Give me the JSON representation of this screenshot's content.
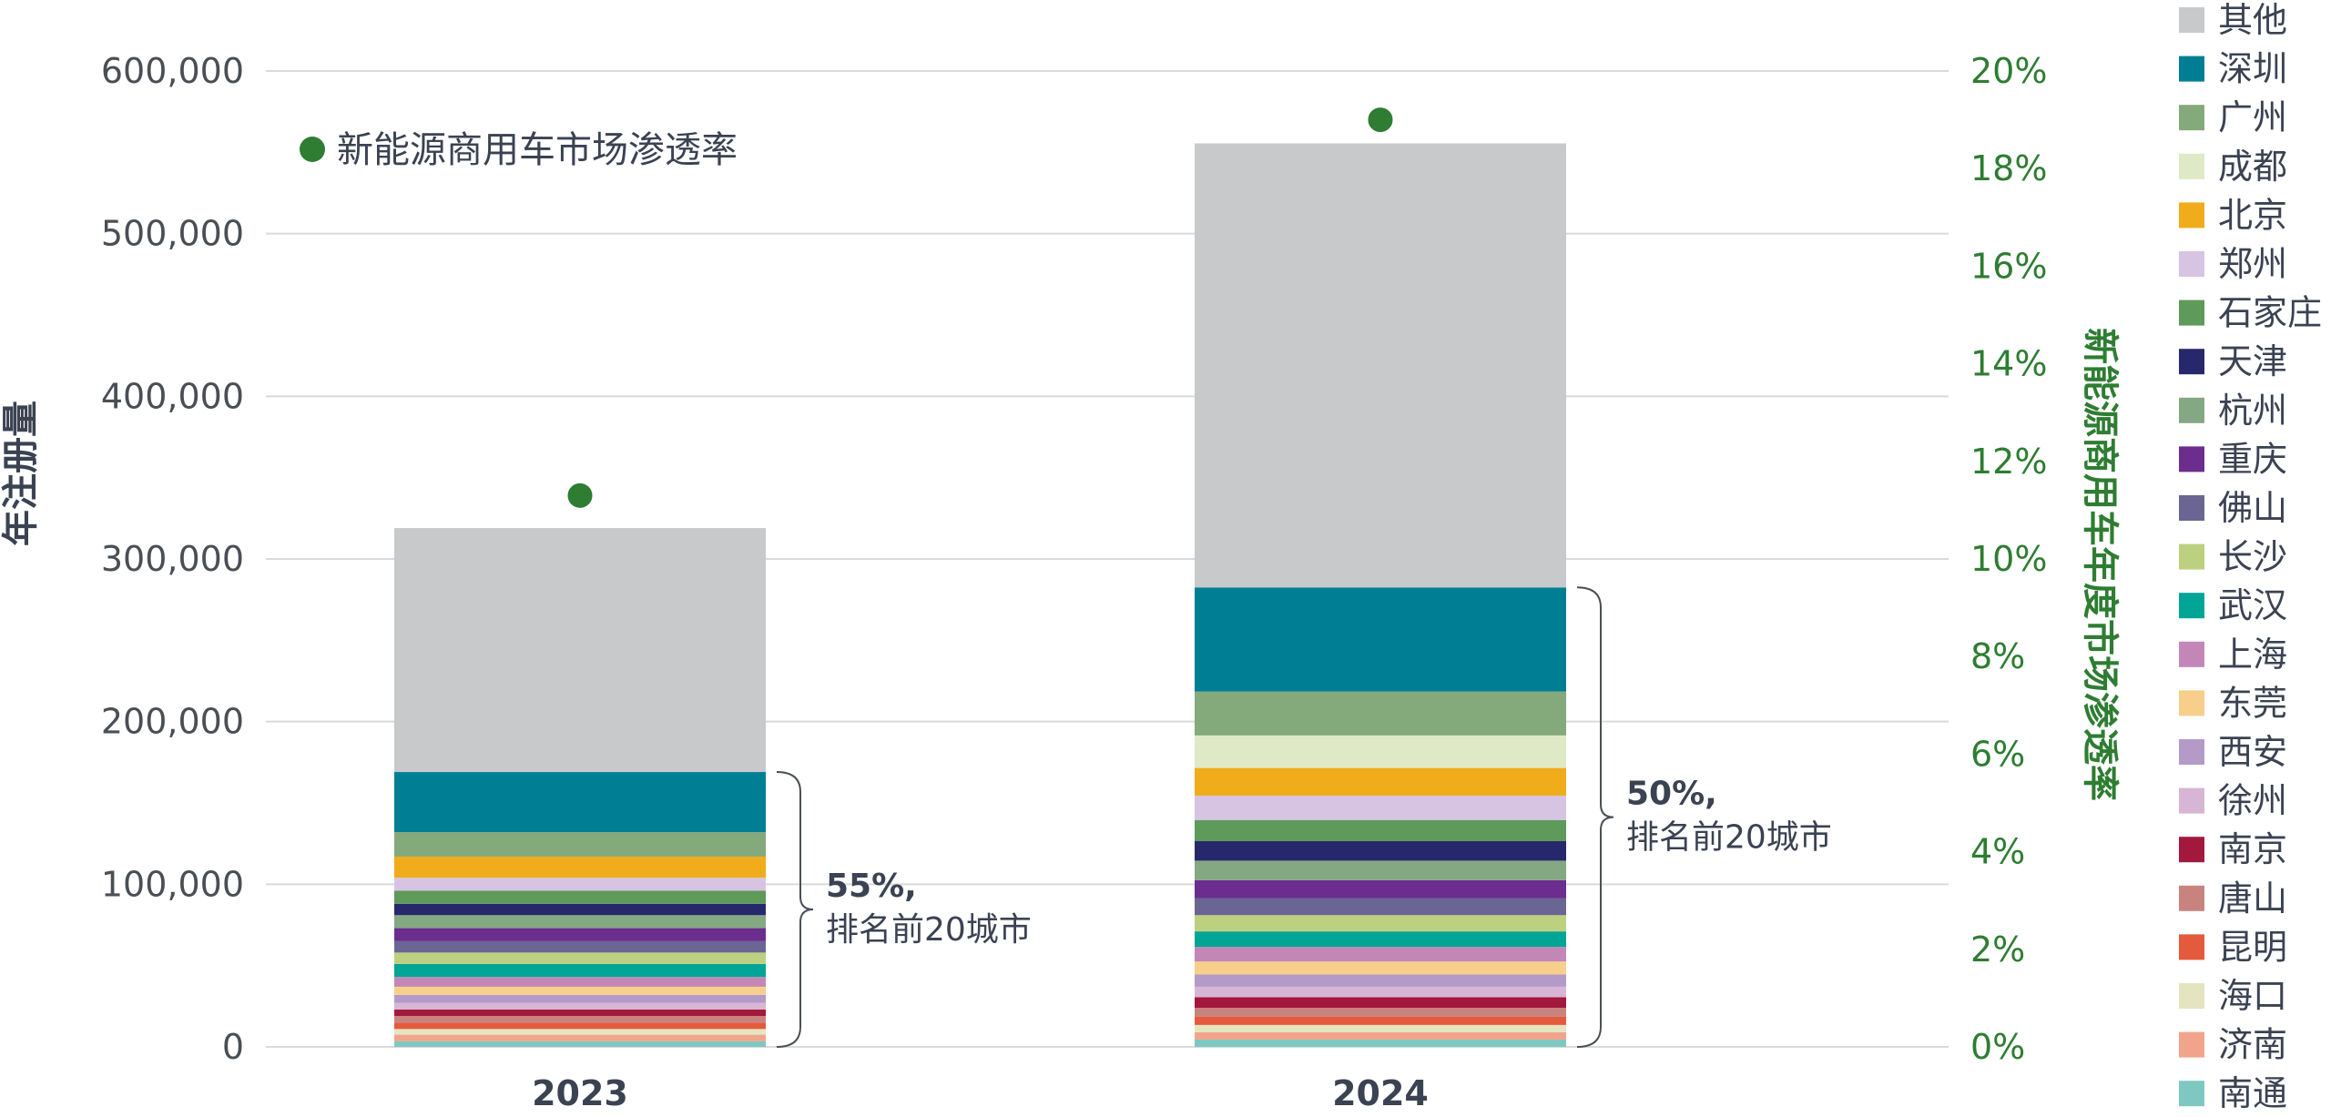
{
  "chart_data": {
    "type": "bar",
    "stacked": true,
    "categories": [
      "2023",
      "2024"
    ],
    "ylabel": "年注册量",
    "ylabel_right": "新能源商用车年度市场渗透率",
    "ylim": [
      0,
      600000
    ],
    "ylim_right": [
      0,
      20
    ],
    "y_ticks": [
      "0",
      "100,000",
      "200,000",
      "300,000",
      "400,000",
      "500,000",
      "600,000"
    ],
    "y_ticks_right": [
      "0%",
      "2%",
      "4%",
      "6%",
      "8%",
      "10%",
      "12%",
      "14%",
      "16%",
      "18%",
      "20%"
    ],
    "grid": true,
    "legend_position": "right",
    "series": [
      {
        "name": "南通",
        "color": "#7fc8c2",
        "values": [
          3500,
          4500
        ]
      },
      {
        "name": "济南",
        "color": "#f2a48a",
        "values": [
          4000,
          4500
        ]
      },
      {
        "name": "海口",
        "color": "#e4e5c0",
        "values": [
          3500,
          4500
        ]
      },
      {
        "name": "昆明",
        "color": "#e55a3c",
        "values": [
          4000,
          5000
        ]
      },
      {
        "name": "唐山",
        "color": "#c9837f",
        "values": [
          4000,
          5500
        ]
      },
      {
        "name": "南京",
        "color": "#a3193d",
        "values": [
          4000,
          6500
        ]
      },
      {
        "name": "徐州",
        "color": "#d7b5d5",
        "values": [
          4000,
          6500
        ]
      },
      {
        "name": "西安",
        "color": "#b49ac8",
        "values": [
          5000,
          7500
        ]
      },
      {
        "name": "东莞",
        "color": "#f7cf8b",
        "values": [
          5000,
          8000
        ]
      },
      {
        "name": "上海",
        "color": "#c287b6",
        "values": [
          6000,
          9000
        ]
      },
      {
        "name": "武汉",
        "color": "#00a596",
        "values": [
          8000,
          9500
        ]
      },
      {
        "name": "长沙",
        "color": "#bdd080",
        "values": [
          7000,
          10000
        ]
      },
      {
        "name": "佛山",
        "color": "#6b6594",
        "values": [
          7000,
          10500
        ]
      },
      {
        "name": "重庆",
        "color": "#6b2d8e",
        "values": [
          8000,
          11000
        ]
      },
      {
        "name": "杭州",
        "color": "#84a882",
        "values": [
          8000,
          12000
        ]
      },
      {
        "name": "天津",
        "color": "#27286c",
        "values": [
          7000,
          12000
        ]
      },
      {
        "name": "石家庄",
        "color": "#5e9a5a",
        "values": [
          8000,
          13000
        ]
      },
      {
        "name": "郑州",
        "color": "#d6c4e2",
        "values": [
          8000,
          15000
        ]
      },
      {
        "name": "北京",
        "color": "#f0ac1b",
        "values": [
          13000,
          17000
        ]
      },
      {
        "name": "成都",
        "color": "#dfe9c6",
        "values": [
          0,
          20000
        ]
      },
      {
        "name": "广州",
        "color": "#84a97b",
        "values": [
          15000,
          27000
        ]
      },
      {
        "name": "深圳",
        "color": "#007e94",
        "values": [
          37000,
          64000
        ]
      },
      {
        "name": "其他",
        "color": "#c8c9cb",
        "values": [
          150000,
          273000
        ]
      }
    ],
    "overlay_series": {
      "name": "新能源商用车市场渗透率",
      "color": "#2e7d32",
      "values": [
        11.3,
        19.0
      ]
    },
    "annotations": [
      {
        "category": "2023",
        "percent": "55%,",
        "text": "排名前20城市"
      },
      {
        "category": "2024",
        "percent": "50%,",
        "text": "排名前20城市"
      }
    ],
    "legend_order": [
      "其他",
      "深圳",
      "广州",
      "成都",
      "北京",
      "郑州",
      "石家庄",
      "天津",
      "杭州",
      "重庆",
      "佛山",
      "长沙",
      "武汉",
      "上海",
      "东莞",
      "西安",
      "徐州",
      "南京",
      "唐山",
      "昆明",
      "海口",
      "济南",
      "南通"
    ]
  }
}
